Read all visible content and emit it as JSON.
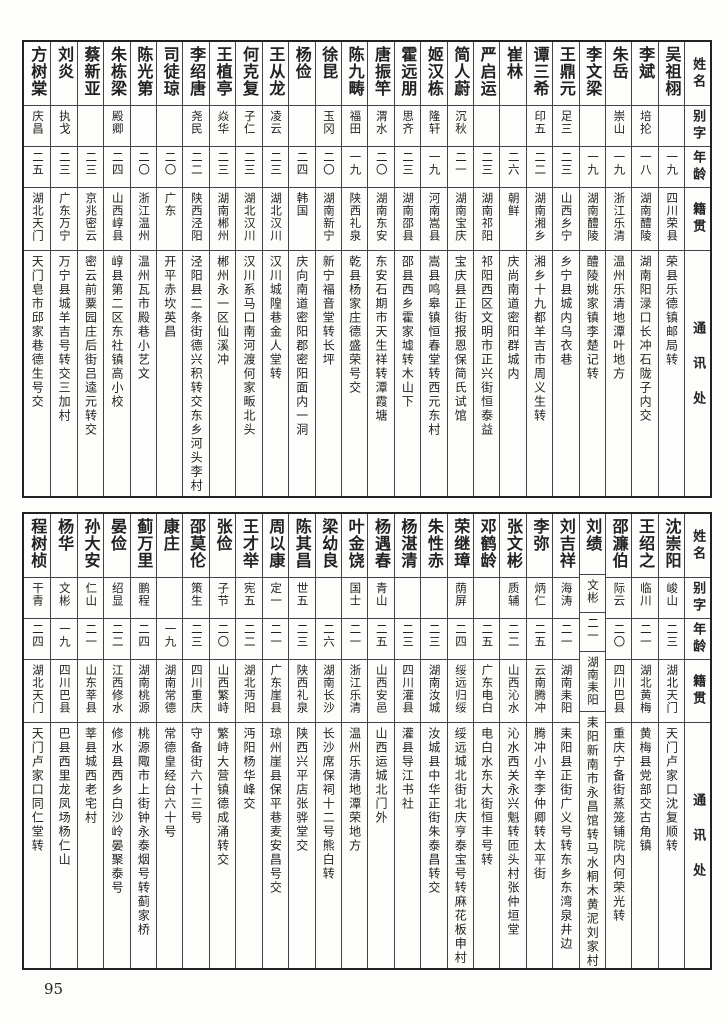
{
  "header": {
    "name": "姓名",
    "alias": "别字",
    "age": "年龄",
    "native": "籍贯",
    "address": "通讯处"
  },
  "tables": [
    {
      "rows": [
        {
          "name": "吴祖栩",
          "alias": "",
          "age": "一九",
          "native": "四川荣县",
          "address": "荣县乐德镇邮局转"
        },
        {
          "name": "李斌",
          "alias": "培抡",
          "age": "一八",
          "native": "湖南醴陵",
          "address": "湖南阳渌口长冲石陇子内交"
        },
        {
          "name": "朱岳",
          "alias": "崇山",
          "age": "一九",
          "native": "浙江乐清",
          "address": "温州乐清地潭叶地方"
        },
        {
          "name": "李文梁",
          "alias": "",
          "age": "一九",
          "native": "湖南醴陵",
          "address": "醴陵姚家镇李楚记转"
        },
        {
          "name": "王鼎元",
          "alias": "足三",
          "age": "二三",
          "native": "山西乡宁",
          "address": "乡宁县城内乌衣巷"
        },
        {
          "name": "谭三希",
          "alias": "印五",
          "age": "二二",
          "native": "湖南湘乡",
          "address": "湘乡十九都羊吉市周义生转"
        },
        {
          "name": "崔林",
          "alias": "",
          "age": "二六",
          "native": "朝鲜",
          "address": "庆尚南道密阳群城内"
        },
        {
          "name": "严启运",
          "alias": "",
          "age": "二三",
          "native": "湖南祁阳",
          "address": "祁阳西区文明市正兴街恒泰益"
        },
        {
          "name": "简人蔚",
          "alias": "沉秋",
          "age": "二一",
          "native": "湖南宝庆",
          "address": "宝庆县正街报恩保简氏试馆"
        },
        {
          "name": "姬汉栋",
          "alias": "隆轩",
          "age": "一九",
          "native": "河南嵩县",
          "address": "嵩县鸣皋镇恒春堂转西元东村"
        },
        {
          "name": "霍远朋",
          "alias": "思齐",
          "age": "二三",
          "native": "湖南邵县",
          "address": "邵县西乡霍家墟转木山下"
        },
        {
          "name": "唐振竿",
          "alias": "渭水",
          "age": "二〇",
          "native": "湖南东安",
          "address": "东安石期市天生祥转潭霞塘"
        },
        {
          "name": "陈九畴",
          "alias": "福田",
          "age": "一九",
          "native": "陕西礼泉",
          "address": "乾县杨家庄德盛荣号交"
        },
        {
          "name": "徐昆",
          "alias": "玉冈",
          "age": "二〇",
          "native": "湖南新宁",
          "address": "新宁福音堂转长坪"
        },
        {
          "name": "杨俭",
          "alias": "",
          "age": "二四",
          "native": "韩国",
          "address": "庆向南道密阳郡密阳面内一洞"
        },
        {
          "name": "王从龙",
          "alias": "凌云",
          "age": "二三",
          "native": "湖北汉川",
          "address": "汉川城隍巷金人堂转"
        },
        {
          "name": "何克复",
          "alias": "子仁",
          "age": "二三",
          "native": "湖北汉川",
          "address": "汉川系马口南河渡何家畈北头"
        },
        {
          "name": "王植亭",
          "alias": "焱华",
          "age": "二三",
          "native": "湖南郴州",
          "address": "郴州永一区仙溪冲"
        },
        {
          "name": "李绍唐",
          "alias": "尧民",
          "age": "二二",
          "native": "陕西泾阳",
          "address": "泾阳县二条街德兴积转交东乡河头李村"
        },
        {
          "name": "司徒琼",
          "alias": "",
          "age": "二〇",
          "native": "广东",
          "address": "开平赤坎英昌"
        },
        {
          "name": "陈光第",
          "alias": "",
          "age": "二〇",
          "native": "浙江温州",
          "address": "温州瓦市殿巷小艺文"
        },
        {
          "name": "朱栋梁",
          "alias": "殿卿",
          "age": "二四",
          "native": "山西崞县",
          "address": "崞县第二区东社镇高小校"
        },
        {
          "name": "蔡新亚",
          "alias": "",
          "age": "二三",
          "native": "京兆密云",
          "address": "密云前粟园庄后街吕逵元转交"
        },
        {
          "name": "刘炎",
          "alias": "执戈",
          "age": "二三",
          "native": "广东万宁",
          "address": "万宁县城羊吉号转交三加村"
        },
        {
          "name": "方树棠",
          "alias": "庆昌",
          "age": "二五",
          "native": "湖北天门",
          "address": "天门皂市邱家巷德生号交"
        }
      ]
    },
    {
      "rows": [
        {
          "name": "沈崇阳",
          "alias": "峻山",
          "age": "二三",
          "native": "湖北天门",
          "address": "天门卢家口沈复顺转"
        },
        {
          "name": "王绍之",
          "alias": "临川",
          "age": "二一",
          "native": "湖北黄梅",
          "address": "黄梅县党部交古角镇"
        },
        {
          "name": "邵濂伯",
          "alias": "际云",
          "age": "二〇",
          "native": "四川巴县",
          "address": "重庆宁备街蒸笼铺院内何荣光转"
        },
        {
          "name": "刘绩",
          "alias": "文彬",
          "age": "二一",
          "native": "湖南耒阳",
          "address": "耒阳新南市永昌馆转马水桐木黄泥刘家村"
        },
        {
          "name": "刘吉祥",
          "alias": "海涛",
          "age": "二一",
          "native": "湖南耒阳",
          "address": "耒阳县正街广义号转东乡东湾泉井边"
        },
        {
          "name": "李弥",
          "alias": "炳仁",
          "age": "二五",
          "native": "云南腾冲",
          "address": "腾冲小辛李仲卿转太平街"
        },
        {
          "name": "张文彬",
          "alias": "质辅",
          "age": "二二",
          "native": "山西沁水",
          "address": "沁水西关永兴魁转匝头村张仲垣堂"
        },
        {
          "name": "邓鹤龄",
          "alias": "",
          "age": "二五",
          "native": "广东电白",
          "address": "电白水东大街恒丰号转"
        },
        {
          "name": "荣继璋",
          "alias": "荫屏",
          "age": "二四",
          "native": "绥远归绥",
          "address": "绥远城北街北庆亨泰宝号转麻花板申村"
        },
        {
          "name": "朱性赤",
          "alias": "",
          "age": "二三",
          "native": "湖南汝城",
          "address": "汝城县中华正街朱泰昌转交"
        },
        {
          "name": "杨湛清",
          "alias": "",
          "age": "二三",
          "native": "四川灌县",
          "address": "灌县导江书社"
        },
        {
          "name": "杨遇春",
          "alias": "青山",
          "age": "二五",
          "native": "山西安邑",
          "address": "山西运城北门外"
        },
        {
          "name": "叶金饶",
          "alias": "国士",
          "age": "二一",
          "native": "浙江乐清",
          "address": "温州乐清地潭荣地方"
        },
        {
          "name": "梁幼良",
          "alias": "",
          "age": "二六",
          "native": "湖南长沙",
          "address": "长沙席保祠十二号熊白转"
        },
        {
          "name": "陈其昌",
          "alias": "世五",
          "age": "二三",
          "native": "陕西礼泉",
          "address": "陕西兴平店张骅堂交"
        },
        {
          "name": "周以康",
          "alias": "定一",
          "age": "二一",
          "native": "广东崖县",
          "address": "琼州崖县保平巷麦安昌号交"
        },
        {
          "name": "王才举",
          "alias": "宪五",
          "age": "二二",
          "native": "湖北沔阳",
          "address": "沔阳杨华峰交"
        },
        {
          "name": "张俭",
          "alias": "子节",
          "age": "二〇",
          "native": "山西繁峙",
          "address": "繁峙大营镇德成涌转交"
        },
        {
          "name": "邵莫伦",
          "alias": "策生",
          "age": "二三",
          "native": "四川重庆",
          "address": "守备街六十三号"
        },
        {
          "name": "康庄",
          "alias": "",
          "age": "一九",
          "native": "湖南常德",
          "address": "常德皇经台六十号"
        },
        {
          "name": "蓟万里",
          "alias": "鹏程",
          "age": "二四",
          "native": "湖南桃源",
          "address": "桃源陬市上街钟永泰烟号转蓟家桥"
        },
        {
          "name": "晏俭",
          "alias": "绍显",
          "age": "二二",
          "native": "江西修水",
          "address": "修水县西乡白沙岭晏聚泰号"
        },
        {
          "name": "孙大安",
          "alias": "仁山",
          "age": "二一",
          "native": "山东莘县",
          "address": "莘县城西老宅村"
        },
        {
          "name": "杨华",
          "alias": "文彬",
          "age": "一九",
          "native": "四川巴县",
          "address": "巴县西里龙凤场杨仁山"
        },
        {
          "name": "程树桢",
          "alias": "干青",
          "age": "二四",
          "native": "湖北天门",
          "address": "天门卢家口同仁堂转"
        }
      ]
    }
  ],
  "page_number": "95"
}
